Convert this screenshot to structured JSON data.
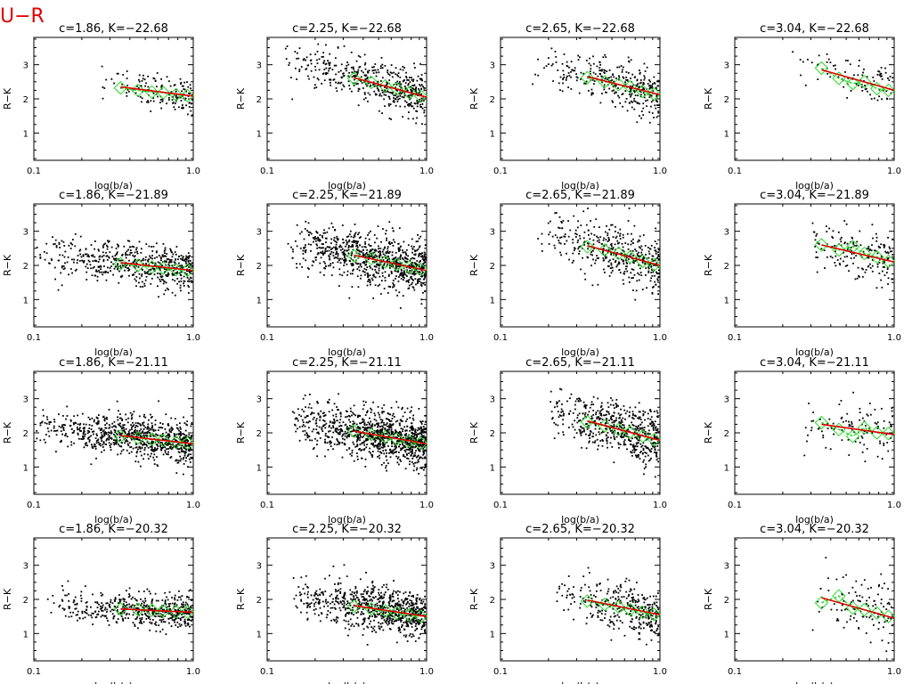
{
  "figure": {
    "title": "U−R"
  },
  "chart_data": [
    {
      "type": "scatter",
      "title": "c=1.86, K=−22.68",
      "xlabel": "log(b/a)",
      "ylabel": "R−K",
      "x_scale": "log",
      "xlim": [
        0.1,
        1.0
      ],
      "ylim": [
        0.2,
        3.8
      ],
      "x_ticks": [
        "0.1",
        "1.0"
      ],
      "y_ticks": [
        "1",
        "2",
        "3"
      ],
      "fit": {
        "x": [
          0.35,
          1.0
        ],
        "y": [
          2.35,
          2.08
        ]
      },
      "medians": {
        "x": [
          0.35,
          0.45,
          0.55,
          0.65,
          0.78,
          0.92
        ],
        "y": [
          2.32,
          2.25,
          2.2,
          2.18,
          2.12,
          2.1
        ]
      },
      "points": {
        "count": 150,
        "x_min": 0.25,
        "x_max": 1.0,
        "y_mean": 2.15,
        "y_spread": 0.25
      }
    },
    {
      "type": "scatter",
      "title": "c=2.25, K=−22.68",
      "xlabel": "log(b/a)",
      "ylabel": "R−K",
      "x_scale": "log",
      "xlim": [
        0.1,
        1.0
      ],
      "ylim": [
        0.2,
        3.8
      ],
      "x_ticks": [
        "0.1",
        "1.0"
      ],
      "y_ticks": [
        "1",
        "2",
        "3"
      ],
      "fit": {
        "x": [
          0.35,
          1.0
        ],
        "y": [
          2.62,
          2.05
        ]
      },
      "medians": {
        "x": [
          0.35,
          0.45,
          0.55,
          0.65,
          0.78,
          0.92
        ],
        "y": [
          2.6,
          2.48,
          2.38,
          2.3,
          2.18,
          2.08
        ]
      },
      "points": {
        "count": 480,
        "x_min": 0.12,
        "x_max": 1.0,
        "y_mean": 2.3,
        "y_spread": 0.32
      }
    },
    {
      "type": "scatter",
      "title": "c=2.65, K=−22.68",
      "xlabel": "log(b/a)",
      "ylabel": "R−K",
      "x_scale": "log",
      "xlim": [
        0.1,
        1.0
      ],
      "ylim": [
        0.2,
        3.8
      ],
      "x_ticks": [
        "0.1",
        "1.0"
      ],
      "y_ticks": [
        "1",
        "2",
        "3"
      ],
      "fit": {
        "x": [
          0.35,
          1.0
        ],
        "y": [
          2.65,
          2.12
        ]
      },
      "medians": {
        "x": [
          0.35,
          0.45,
          0.55,
          0.65,
          0.78,
          0.92
        ],
        "y": [
          2.62,
          2.5,
          2.42,
          2.35,
          2.22,
          2.14
        ]
      },
      "points": {
        "count": 330,
        "x_min": 0.15,
        "x_max": 1.0,
        "y_mean": 2.35,
        "y_spread": 0.34
      }
    },
    {
      "type": "scatter",
      "title": "c=3.04, K=−22.68",
      "xlabel": "log(b/a)",
      "ylabel": "R−K",
      "x_scale": "log",
      "xlim": [
        0.1,
        1.0
      ],
      "ylim": [
        0.2,
        3.8
      ],
      "x_ticks": [
        "0.1",
        "1.0"
      ],
      "y_ticks": [
        "1",
        "2",
        "3"
      ],
      "fit": {
        "x": [
          0.35,
          1.0
        ],
        "y": [
          2.85,
          2.25
        ]
      },
      "medians": {
        "x": [
          0.35,
          0.45,
          0.55,
          0.65,
          0.78,
          0.92
        ],
        "y": [
          2.9,
          2.6,
          2.45,
          2.5,
          2.3,
          2.25
        ]
      },
      "points": {
        "count": 90,
        "x_min": 0.22,
        "x_max": 1.0,
        "y_mean": 2.5,
        "y_spread": 0.32
      }
    },
    {
      "type": "scatter",
      "title": "c=1.86, K=−21.89",
      "xlabel": "log(b/a)",
      "ylabel": "R−K",
      "x_scale": "log",
      "xlim": [
        0.1,
        1.0
      ],
      "ylim": [
        0.2,
        3.8
      ],
      "x_ticks": [
        "0.1",
        "1.0"
      ],
      "y_ticks": [
        "1",
        "2",
        "3"
      ],
      "fit": {
        "x": [
          0.35,
          1.0
        ],
        "y": [
          2.08,
          1.85
        ]
      },
      "medians": {
        "x": [
          0.35,
          0.45,
          0.55,
          0.65,
          0.78,
          0.92
        ],
        "y": [
          2.05,
          2.0,
          1.95,
          1.92,
          1.88,
          1.86
        ]
      },
      "points": {
        "count": 560,
        "x_min": 0.1,
        "x_max": 1.0,
        "y_mean": 1.95,
        "y_spread": 0.3
      }
    },
    {
      "type": "scatter",
      "title": "c=2.25, K=−21.89",
      "xlabel": "log(b/a)",
      "ylabel": "R−K",
      "x_scale": "log",
      "xlim": [
        0.1,
        1.0
      ],
      "ylim": [
        0.2,
        3.8
      ],
      "x_ticks": [
        "0.1",
        "1.0"
      ],
      "y_ticks": [
        "1",
        "2",
        "3"
      ],
      "fit": {
        "x": [
          0.35,
          1.0
        ],
        "y": [
          2.3,
          1.85
        ]
      },
      "medians": {
        "x": [
          0.35,
          0.45,
          0.55,
          0.65,
          0.78,
          0.92
        ],
        "y": [
          2.28,
          2.2,
          2.1,
          2.02,
          1.95,
          1.88
        ]
      },
      "points": {
        "count": 850,
        "x_min": 0.13,
        "x_max": 1.0,
        "y_mean": 2.05,
        "y_spread": 0.38
      }
    },
    {
      "type": "scatter",
      "title": "c=2.65, K=−21.89",
      "xlabel": "log(b/a)",
      "ylabel": "R−K",
      "x_scale": "log",
      "xlim": [
        0.1,
        1.0
      ],
      "ylim": [
        0.2,
        3.8
      ],
      "x_ticks": [
        "0.1",
        "1.0"
      ],
      "y_ticks": [
        "1",
        "2",
        "3"
      ],
      "fit": {
        "x": [
          0.35,
          1.0
        ],
        "y": [
          2.58,
          2.0
        ]
      },
      "medians": {
        "x": [
          0.35,
          0.45,
          0.55,
          0.65,
          0.78,
          0.92
        ],
        "y": [
          2.55,
          2.45,
          2.35,
          2.25,
          2.12,
          2.02
        ]
      },
      "points": {
        "count": 420,
        "x_min": 0.17,
        "x_max": 1.0,
        "y_mean": 2.2,
        "y_spread": 0.4
      }
    },
    {
      "type": "scatter",
      "title": "c=3.04, K=−21.89",
      "xlabel": "log(b/a)",
      "ylabel": "R−K",
      "x_scale": "log",
      "xlim": [
        0.1,
        1.0
      ],
      "ylim": [
        0.2,
        3.8
      ],
      "x_ticks": [
        "0.1",
        "1.0"
      ],
      "y_ticks": [
        "1",
        "2",
        "3"
      ],
      "fit": {
        "x": [
          0.35,
          1.0
        ],
        "y": [
          2.6,
          2.1
        ]
      },
      "medians": {
        "x": [
          0.35,
          0.45,
          0.55,
          0.65,
          0.78,
          0.92
        ],
        "y": [
          2.6,
          2.45,
          2.55,
          2.35,
          2.25,
          2.12
        ]
      },
      "points": {
        "count": 170,
        "x_min": 0.28,
        "x_max": 1.0,
        "y_mean": 2.3,
        "y_spread": 0.38
      }
    },
    {
      "type": "scatter",
      "title": "c=1.86, K=−21.11",
      "xlabel": "log(b/a)",
      "ylabel": "R−K",
      "x_scale": "log",
      "xlim": [
        0.1,
        1.0
      ],
      "ylim": [
        0.2,
        3.8
      ],
      "x_ticks": [
        "0.1",
        "1.0"
      ],
      "y_ticks": [
        "1",
        "2",
        "3"
      ],
      "fit": {
        "x": [
          0.35,
          1.0
        ],
        "y": [
          1.92,
          1.68
        ]
      },
      "medians": {
        "x": [
          0.35,
          0.45,
          0.55,
          0.65,
          0.78,
          0.92
        ],
        "y": [
          1.9,
          1.85,
          1.82,
          1.78,
          1.72,
          1.7
        ]
      },
      "points": {
        "count": 820,
        "x_min": 0.1,
        "x_max": 1.0,
        "y_mean": 1.85,
        "y_spread": 0.3
      }
    },
    {
      "type": "scatter",
      "title": "c=2.25, K=−21.11",
      "xlabel": "log(b/a)",
      "ylabel": "R−K",
      "x_scale": "log",
      "xlim": [
        0.1,
        1.0
      ],
      "ylim": [
        0.2,
        3.8
      ],
      "x_ticks": [
        "0.1",
        "1.0"
      ],
      "y_ticks": [
        "1",
        "2",
        "3"
      ],
      "fit": {
        "x": [
          0.35,
          1.0
        ],
        "y": [
          2.05,
          1.68
        ]
      },
      "medians": {
        "x": [
          0.35,
          0.45,
          0.55,
          0.65,
          0.78,
          0.92
        ],
        "y": [
          2.05,
          1.95,
          1.88,
          1.82,
          1.75,
          1.7
        ]
      },
      "points": {
        "count": 1050,
        "x_min": 0.14,
        "x_max": 1.0,
        "y_mean": 1.85,
        "y_spread": 0.36
      }
    },
    {
      "type": "scatter",
      "title": "c=2.65, K=−21.11",
      "xlabel": "log(b/a)",
      "ylabel": "R−K",
      "x_scale": "log",
      "xlim": [
        0.1,
        1.0
      ],
      "ylim": [
        0.2,
        3.8
      ],
      "x_ticks": [
        "0.1",
        "1.0"
      ],
      "y_ticks": [
        "1",
        "2",
        "3"
      ],
      "fit": {
        "x": [
          0.35,
          1.0
        ],
        "y": [
          2.35,
          1.78
        ]
      },
      "medians": {
        "x": [
          0.35,
          0.45,
          0.55,
          0.65,
          0.78,
          0.92
        ],
        "y": [
          2.32,
          2.2,
          2.1,
          2.02,
          1.9,
          1.8
        ]
      },
      "points": {
        "count": 560,
        "x_min": 0.18,
        "x_max": 1.0,
        "y_mean": 2.05,
        "y_spread": 0.38
      }
    },
    {
      "type": "scatter",
      "title": "c=3.04, K=−21.11",
      "xlabel": "log(b/a)",
      "ylabel": "R−K",
      "x_scale": "log",
      "xlim": [
        0.1,
        1.0
      ],
      "ylim": [
        0.2,
        3.8
      ],
      "x_ticks": [
        "0.1",
        "1.0"
      ],
      "y_ticks": [
        "1",
        "2",
        "3"
      ],
      "fit": {
        "x": [
          0.35,
          1.0
        ],
        "y": [
          2.25,
          1.95
        ]
      },
      "medians": {
        "x": [
          0.35,
          0.45,
          0.55,
          0.65,
          0.78,
          0.92
        ],
        "y": [
          2.3,
          2.1,
          1.9,
          2.15,
          2.0,
          1.98
        ]
      },
      "points": {
        "count": 110,
        "x_min": 0.25,
        "x_max": 1.0,
        "y_mean": 2.1,
        "y_spread": 0.38
      }
    },
    {
      "type": "scatter",
      "title": "c=1.86, K=−20.32",
      "xlabel": "log(b/a)",
      "ylabel": "R−K",
      "x_scale": "log",
      "xlim": [
        0.1,
        1.0
      ],
      "ylim": [
        0.2,
        3.8
      ],
      "x_ticks": [
        "0.1",
        "1.0"
      ],
      "y_ticks": [
        "1",
        "2",
        "3"
      ],
      "fit": {
        "x": [
          0.35,
          1.0
        ],
        "y": [
          1.72,
          1.62
        ]
      },
      "medians": {
        "x": [
          0.35,
          0.45,
          0.55,
          0.65,
          0.78,
          0.92
        ],
        "y": [
          1.72,
          1.7,
          1.68,
          1.66,
          1.64,
          1.63
        ]
      },
      "points": {
        "count": 520,
        "x_min": 0.12,
        "x_max": 1.0,
        "y_mean": 1.7,
        "y_spread": 0.25
      }
    },
    {
      "type": "scatter",
      "title": "c=2.25, K=−20.32",
      "xlabel": "log(b/a)",
      "ylabel": "R−K",
      "x_scale": "log",
      "xlim": [
        0.1,
        1.0
      ],
      "ylim": [
        0.2,
        3.8
      ],
      "x_ticks": [
        "0.1",
        "1.0"
      ],
      "y_ticks": [
        "1",
        "2",
        "3"
      ],
      "fit": {
        "x": [
          0.35,
          1.0
        ],
        "y": [
          1.82,
          1.5
        ]
      },
      "medians": {
        "x": [
          0.35,
          0.45,
          0.55,
          0.65,
          0.78,
          0.92
        ],
        "y": [
          1.8,
          1.72,
          1.66,
          1.6,
          1.55,
          1.5
        ]
      },
      "points": {
        "count": 800,
        "x_min": 0.14,
        "x_max": 1.0,
        "y_mean": 1.7,
        "y_spread": 0.32
      }
    },
    {
      "type": "scatter",
      "title": "c=2.65, K=−20.32",
      "xlabel": "log(b/a)",
      "ylabel": "R−K",
      "x_scale": "log",
      "xlim": [
        0.1,
        1.0
      ],
      "ylim": [
        0.2,
        3.8
      ],
      "x_ticks": [
        "0.1",
        "1.0"
      ],
      "y_ticks": [
        "1",
        "2",
        "3"
      ],
      "fit": {
        "x": [
          0.35,
          1.0
        ],
        "y": [
          1.98,
          1.55
        ]
      },
      "medians": {
        "x": [
          0.35,
          0.45,
          0.55,
          0.65,
          0.78,
          0.92
        ],
        "y": [
          1.95,
          1.85,
          1.78,
          1.7,
          1.62,
          1.56
        ]
      },
      "points": {
        "count": 330,
        "x_min": 0.22,
        "x_max": 1.0,
        "y_mean": 1.75,
        "y_spread": 0.35
      }
    },
    {
      "type": "scatter",
      "title": "c=3.04, K=−20.32",
      "xlabel": "log(b/a)",
      "ylabel": "R−K",
      "x_scale": "log",
      "xlim": [
        0.1,
        1.0
      ],
      "ylim": [
        0.2,
        3.8
      ],
      "x_ticks": [
        "0.1",
        "1.0"
      ],
      "y_ticks": [
        "1",
        "2",
        "3"
      ],
      "fit": {
        "x": [
          0.35,
          1.0
        ],
        "y": [
          2.05,
          1.45
        ]
      },
      "medians": {
        "x": [
          0.35,
          0.45,
          0.55,
          0.65,
          0.78,
          0.92
        ],
        "y": [
          1.9,
          2.1,
          1.75,
          1.7,
          1.6,
          1.5
        ]
      },
      "points": {
        "count": 110,
        "x_min": 0.3,
        "x_max": 1.0,
        "y_mean": 1.75,
        "y_spread": 0.45
      }
    }
  ]
}
